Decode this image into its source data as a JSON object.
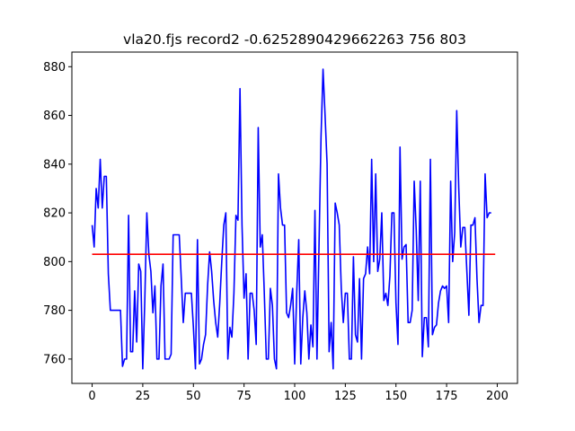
{
  "chart_data": {
    "type": "line",
    "title": "vla20.fjs record2 -0.6252890429662263 756 803",
    "xlabel": "",
    "ylabel": "",
    "xlim": [
      -10,
      210
    ],
    "ylim": [
      750,
      886
    ],
    "x_ticks": [
      0,
      25,
      50,
      75,
      100,
      125,
      150,
      175,
      200
    ],
    "y_ticks": [
      760,
      780,
      800,
      820,
      840,
      860,
      880
    ],
    "grid": false,
    "series": [
      {
        "color": "#0000ff",
        "values": [
          815,
          806,
          830,
          822,
          842,
          822,
          835,
          835,
          795,
          780,
          780,
          780,
          780,
          780,
          780,
          757,
          760,
          760,
          819,
          763,
          763,
          788,
          767,
          799,
          796,
          756,
          784,
          820,
          803,
          796,
          779,
          790,
          760,
          760,
          790,
          799,
          760,
          760,
          760,
          762,
          811,
          811,
          811,
          811,
          793,
          775,
          787,
          787,
          787,
          787,
          773,
          756,
          809,
          758,
          760,
          766,
          770,
          790,
          804,
          796,
          784,
          775,
          769,
          783,
          800,
          815,
          820,
          760,
          773,
          769,
          787,
          819,
          817,
          871,
          815,
          785,
          795,
          760,
          787,
          787,
          780,
          766,
          855,
          806,
          811,
          787,
          760,
          760,
          789,
          782,
          760,
          756,
          836,
          822,
          815,
          815,
          779,
          777,
          782,
          789,
          758,
          787,
          809,
          758,
          777,
          788,
          779,
          760,
          774,
          765,
          821,
          760,
          806,
          851,
          879,
          860,
          840,
          763,
          775,
          756,
          824,
          820,
          815,
          789,
          775,
          787,
          787,
          760,
          760,
          802,
          770,
          767,
          793,
          760,
          793,
          795,
          806,
          795,
          842,
          800,
          836,
          796,
          801,
          820,
          784,
          787,
          782,
          794,
          820,
          820,
          783,
          766,
          847,
          801,
          806,
          807,
          775,
          775,
          780,
          833,
          813,
          784,
          833,
          761,
          777,
          777,
          765,
          842,
          770,
          773,
          774,
          783,
          788,
          790,
          789,
          790,
          775,
          833,
          800,
          812,
          862,
          830,
          806,
          814,
          814,
          796,
          778,
          815,
          815,
          818,
          793,
          775,
          782,
          782,
          836,
          818,
          820,
          820
        ]
      },
      {
        "color": "#ff0000",
        "y_constant": 803,
        "x_range": [
          0,
          199
        ]
      }
    ]
  }
}
